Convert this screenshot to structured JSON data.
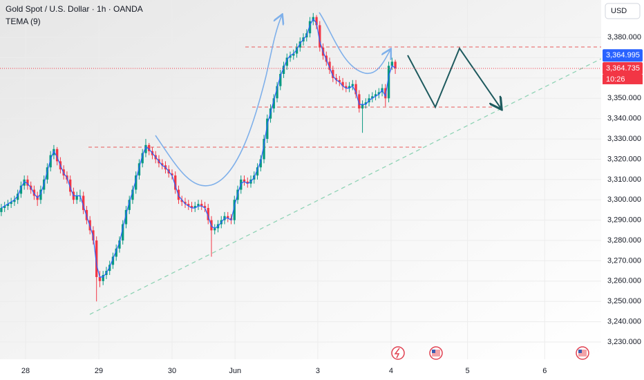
{
  "chart_data": {
    "type": "candlestick",
    "title": "Gold Spot / U.S. Dollar · 1h · OANDA",
    "indicator": "TEMA (9)",
    "currency": "USD",
    "up_color": "#089981",
    "down_color": "#f23645",
    "tema_color": "#2962ff",
    "ylim": [
      3221.5,
      3398.4
    ],
    "yticks": [
      {
        "value": 3230,
        "label": "3,230.000"
      },
      {
        "value": 3240,
        "label": "3,240.000"
      },
      {
        "value": 3250,
        "label": "3,250.000"
      },
      {
        "value": 3260,
        "label": "3,260.000"
      },
      {
        "value": 3270,
        "label": "3,270.000"
      },
      {
        "value": 3280,
        "label": "3,280.000"
      },
      {
        "value": 3290,
        "label": "3,290.000"
      },
      {
        "value": 3300,
        "label": "3,300.000"
      },
      {
        "value": 3310,
        "label": "3,310.000"
      },
      {
        "value": 3320,
        "label": "3,320.000"
      },
      {
        "value": 3330,
        "label": "3,330.000"
      },
      {
        "value": 3340,
        "label": "3,340.000"
      },
      {
        "value": 3350,
        "label": "3,350.000"
      },
      {
        "value": 3360,
        "label": "3,360.000"
      },
      {
        "value": 3370,
        "label": "3,370.000"
      },
      {
        "value": 3380,
        "label": "3,380.000"
      }
    ],
    "xlim": [
      -0.4,
      182.7
    ],
    "xticks": [
      {
        "value": 7.4,
        "label": "28"
      },
      {
        "value": 29.7,
        "label": "29"
      },
      {
        "value": 52,
        "label": "30"
      },
      {
        "value": 71.2,
        "label": "Jun"
      },
      {
        "value": 96.4,
        "label": "3"
      },
      {
        "value": 118.7,
        "label": "4"
      },
      {
        "value": 142,
        "label": "5"
      },
      {
        "value": 165.5,
        "label": "6"
      }
    ],
    "price_tags": [
      {
        "value": 3364.995,
        "label": "3,364.995",
        "color": "#2962ff"
      },
      {
        "value": 3364.735,
        "label": "3,364.735",
        "color": "#f23645"
      }
    ],
    "countdown": "10:26",
    "candles": [
      [
        3294,
        3298,
        3292,
        3296
      ],
      [
        3296,
        3299,
        3294,
        3297
      ],
      [
        3297,
        3300,
        3295,
        3298
      ],
      [
        3298,
        3301,
        3296,
        3299
      ],
      [
        3299,
        3302,
        3297,
        3300
      ],
      [
        3300,
        3305,
        3298,
        3303
      ],
      [
        3303,
        3309,
        3301,
        3307
      ],
      [
        3307,
        3312,
        3305,
        3310
      ],
      [
        3310,
        3312,
        3305,
        3307
      ],
      [
        3307,
        3309,
        3303,
        3305
      ],
      [
        3305,
        3307,
        3300,
        3302
      ],
      [
        3302,
        3304,
        3297,
        3300
      ],
      [
        3300,
        3307,
        3298,
        3305
      ],
      [
        3305,
        3312,
        3303,
        3310
      ],
      [
        3310,
        3318,
        3308,
        3316
      ],
      [
        3316,
        3324,
        3314,
        3322
      ],
      [
        3322,
        3327,
        3320,
        3325
      ],
      [
        3325,
        3326,
        3317,
        3319
      ],
      [
        3319,
        3321,
        3313,
        3315
      ],
      [
        3315,
        3317,
        3310,
        3312
      ],
      [
        3312,
        3314,
        3308,
        3310
      ],
      [
        3310,
        3312,
        3302,
        3304
      ],
      [
        3304,
        3306,
        3298,
        3300
      ],
      [
        3300,
        3304,
        3298,
        3302
      ],
      [
        3302,
        3305,
        3299,
        3302
      ],
      [
        3302,
        3304,
        3293,
        3295
      ],
      [
        3295,
        3297,
        3288,
        3290
      ],
      [
        3290,
        3292,
        3283,
        3285
      ],
      [
        3285,
        3287,
        3278,
        3280
      ],
      [
        3280,
        3282,
        3250,
        3262
      ],
      [
        3262,
        3265,
        3257,
        3260
      ],
      [
        3260,
        3265,
        3258,
        3263
      ],
      [
        3263,
        3267,
        3261,
        3265
      ],
      [
        3265,
        3270,
        3263,
        3268
      ],
      [
        3268,
        3274,
        3266,
        3272
      ],
      [
        3272,
        3278,
        3270,
        3276
      ],
      [
        3276,
        3282,
        3274,
        3280
      ],
      [
        3280,
        3290,
        3278,
        3288
      ],
      [
        3288,
        3297,
        3286,
        3295
      ],
      [
        3295,
        3302,
        3293,
        3300
      ],
      [
        3300,
        3307,
        3298,
        3305
      ],
      [
        3305,
        3314,
        3303,
        3312
      ],
      [
        3312,
        3320,
        3310,
        3318
      ],
      [
        3318,
        3325,
        3316,
        3323
      ],
      [
        3323,
        3330,
        3321,
        3327
      ],
      [
        3327,
        3328,
        3322,
        3324
      ],
      [
        3324,
        3326,
        3320,
        3322
      ],
      [
        3322,
        3324,
        3318,
        3320
      ],
      [
        3320,
        3322,
        3316,
        3318
      ],
      [
        3318,
        3320,
        3315,
        3317
      ],
      [
        3317,
        3319,
        3313,
        3315
      ],
      [
        3315,
        3317,
        3311,
        3313
      ],
      [
        3313,
        3315,
        3310,
        3312
      ],
      [
        3312,
        3314,
        3303,
        3305
      ],
      [
        3305,
        3307,
        3298,
        3300
      ],
      [
        3300,
        3302,
        3297,
        3299
      ],
      [
        3299,
        3301,
        3296,
        3298
      ],
      [
        3298,
        3300,
        3295,
        3297
      ],
      [
        3297,
        3299,
        3294,
        3296
      ],
      [
        3296,
        3299,
        3294,
        3297
      ],
      [
        3297,
        3300,
        3295,
        3298
      ],
      [
        3298,
        3300,
        3295,
        3297
      ],
      [
        3297,
        3299,
        3294,
        3296
      ],
      [
        3296,
        3298,
        3288,
        3290
      ],
      [
        3290,
        3292,
        3272,
        3285
      ],
      [
        3285,
        3288,
        3283,
        3286
      ],
      [
        3286,
        3290,
        3284,
        3288
      ],
      [
        3288,
        3292,
        3286,
        3290
      ],
      [
        3290,
        3294,
        3288,
        3292
      ],
      [
        3292,
        3294,
        3289,
        3291
      ],
      [
        3291,
        3293,
        3288,
        3290
      ],
      [
        3290,
        3302,
        3288,
        3300
      ],
      [
        3300,
        3307,
        3298,
        3305
      ],
      [
        3305,
        3312,
        3303,
        3310
      ],
      [
        3310,
        3312,
        3307,
        3309
      ],
      [
        3309,
        3311,
        3306,
        3308
      ],
      [
        3308,
        3312,
        3306,
        3310
      ],
      [
        3310,
        3314,
        3308,
        3312
      ],
      [
        3312,
        3318,
        3310,
        3316
      ],
      [
        3316,
        3322,
        3314,
        3320
      ],
      [
        3320,
        3332,
        3318,
        3330
      ],
      [
        3330,
        3342,
        3328,
        3340
      ],
      [
        3340,
        3347,
        3338,
        3345
      ],
      [
        3345,
        3352,
        3343,
        3350
      ],
      [
        3350,
        3358,
        3348,
        3356
      ],
      [
        3356,
        3364,
        3354,
        3362
      ],
      [
        3362,
        3368,
        3360,
        3366
      ],
      [
        3366,
        3372,
        3364,
        3370
      ],
      [
        3370,
        3373,
        3368,
        3371
      ],
      [
        3371,
        3374,
        3369,
        3372
      ],
      [
        3372,
        3377,
        3370,
        3375
      ],
      [
        3375,
        3380,
        3373,
        3378
      ],
      [
        3378,
        3382,
        3376,
        3380
      ],
      [
        3380,
        3384,
        3378,
        3382
      ],
      [
        3382,
        3390,
        3380,
        3388
      ],
      [
        3388,
        3392,
        3386,
        3390
      ],
      [
        3390,
        3391,
        3384,
        3386
      ],
      [
        3386,
        3388,
        3373,
        3375
      ],
      [
        3375,
        3377,
        3369,
        3371
      ],
      [
        3371,
        3373,
        3366,
        3368
      ],
      [
        3368,
        3370,
        3362,
        3364
      ],
      [
        3364,
        3366,
        3358,
        3360
      ],
      [
        3360,
        3362,
        3357,
        3359
      ],
      [
        3359,
        3361,
        3356,
        3358
      ],
      [
        3358,
        3360,
        3354,
        3356
      ],
      [
        3356,
        3358,
        3353,
        3355
      ],
      [
        3355,
        3358,
        3353,
        3356
      ],
      [
        3356,
        3359,
        3354,
        3357
      ],
      [
        3357,
        3359,
        3350,
        3352
      ],
      [
        3352,
        3354,
        3343,
        3345
      ],
      [
        3345,
        3349,
        3333,
        3347
      ],
      [
        3347,
        3350,
        3345,
        3348
      ],
      [
        3348,
        3352,
        3346,
        3350
      ],
      [
        3350,
        3353,
        3348,
        3351
      ],
      [
        3351,
        3354,
        3349,
        3352
      ],
      [
        3352,
        3355,
        3350,
        3353
      ],
      [
        3353,
        3357,
        3351,
        3355
      ],
      [
        3355,
        3357,
        3346,
        3350
      ],
      [
        3350,
        3368,
        3348,
        3366
      ],
      [
        3366,
        3370,
        3364,
        3368
      ],
      [
        3368,
        3369,
        3362,
        3364.735
      ]
    ],
    "tema": [
      3296,
      3297,
      3298,
      3299,
      3300,
      3302,
      3306,
      3309,
      3308,
      3306,
      3303,
      3301,
      3303,
      3308,
      3314,
      3320,
      3324,
      3321,
      3317,
      3313,
      3311,
      3306,
      3302,
      3302,
      3302,
      3297,
      3292,
      3287,
      3282,
      3268,
      3262,
      3262,
      3264,
      3267,
      3271,
      3275,
      3279,
      3286,
      3293,
      3299,
      3304,
      3310,
      3316,
      3322,
      3326,
      3325,
      3323,
      3321,
      3319,
      3317,
      3316,
      3314,
      3312,
      3307,
      3302,
      3300,
      3298,
      3297,
      3296,
      3296,
      3297,
      3297,
      3296,
      3292,
      3287,
      3286,
      3287,
      3289,
      3291,
      3291,
      3290,
      3297,
      3303,
      3308,
      3309,
      3308,
      3309,
      3311,
      3315,
      3319,
      3327,
      3337,
      3343,
      3349,
      3355,
      3361,
      3365,
      3369,
      3371,
      3372,
      3374,
      3377,
      3379,
      3381,
      3386,
      3389,
      3387,
      3378,
      3373,
      3369,
      3365,
      3361,
      3359,
      3358,
      3356,
      3355,
      3355,
      3356,
      3353,
      3347,
      3347,
      3347,
      3349,
      3350,
      3351,
      3352,
      3354,
      3351,
      3361,
      3366,
      3365
    ]
  }
}
